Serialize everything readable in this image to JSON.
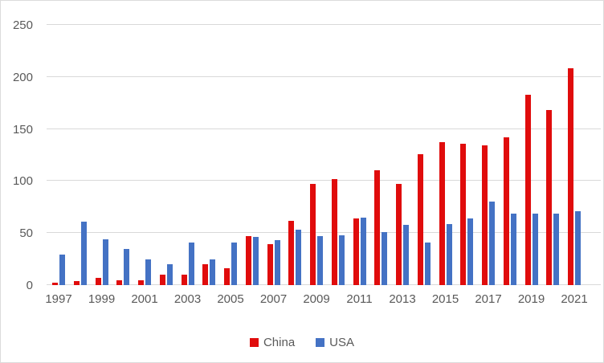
{
  "chart_data": {
    "type": "bar",
    "title": "",
    "categories": [
      1997,
      1998,
      1999,
      2000,
      2001,
      2002,
      2003,
      2004,
      2005,
      2006,
      2007,
      2008,
      2009,
      2010,
      2011,
      2012,
      2013,
      2014,
      2015,
      2016,
      2017,
      2018,
      2019,
      2020,
      2021
    ],
    "series": [
      {
        "name": "China",
        "color": "#e00c0c",
        "values": [
          2,
          4,
          7,
          5,
          5,
          10,
          10,
          20,
          16,
          47,
          39,
          62,
          97,
          102,
          64,
          110,
          97,
          126,
          137,
          136,
          134,
          142,
          183,
          168,
          208
        ]
      },
      {
        "name": "USA",
        "color": "#4472c4",
        "values": [
          29,
          61,
          44,
          35,
          25,
          20,
          41,
          25,
          41,
          46,
          43,
          53,
          47,
          48,
          65,
          51,
          58,
          41,
          59,
          64,
          80,
          69,
          69,
          69,
          71
        ]
      }
    ],
    "ylim": [
      0,
      250
    ],
    "y_ticks": [
      "0",
      "50",
      "100",
      "150",
      "200",
      "250"
    ],
    "x_tick_labels": [
      "1997",
      "1999",
      "2001",
      "2003",
      "2005",
      "2007",
      "2009",
      "2011",
      "2013",
      "2015",
      "2017",
      "2019",
      "2021"
    ],
    "xlabel": "",
    "ylabel": "",
    "grid": "horizontal",
    "legend_position": "bottom"
  },
  "legend": {
    "items": [
      {
        "label": "China",
        "color": "#e00c0c"
      },
      {
        "label": "USA",
        "color": "#4472c4"
      }
    ]
  },
  "colors": {
    "background": "#ffffff",
    "gridline": "#d9d9d9",
    "axis_text": "#595959"
  }
}
